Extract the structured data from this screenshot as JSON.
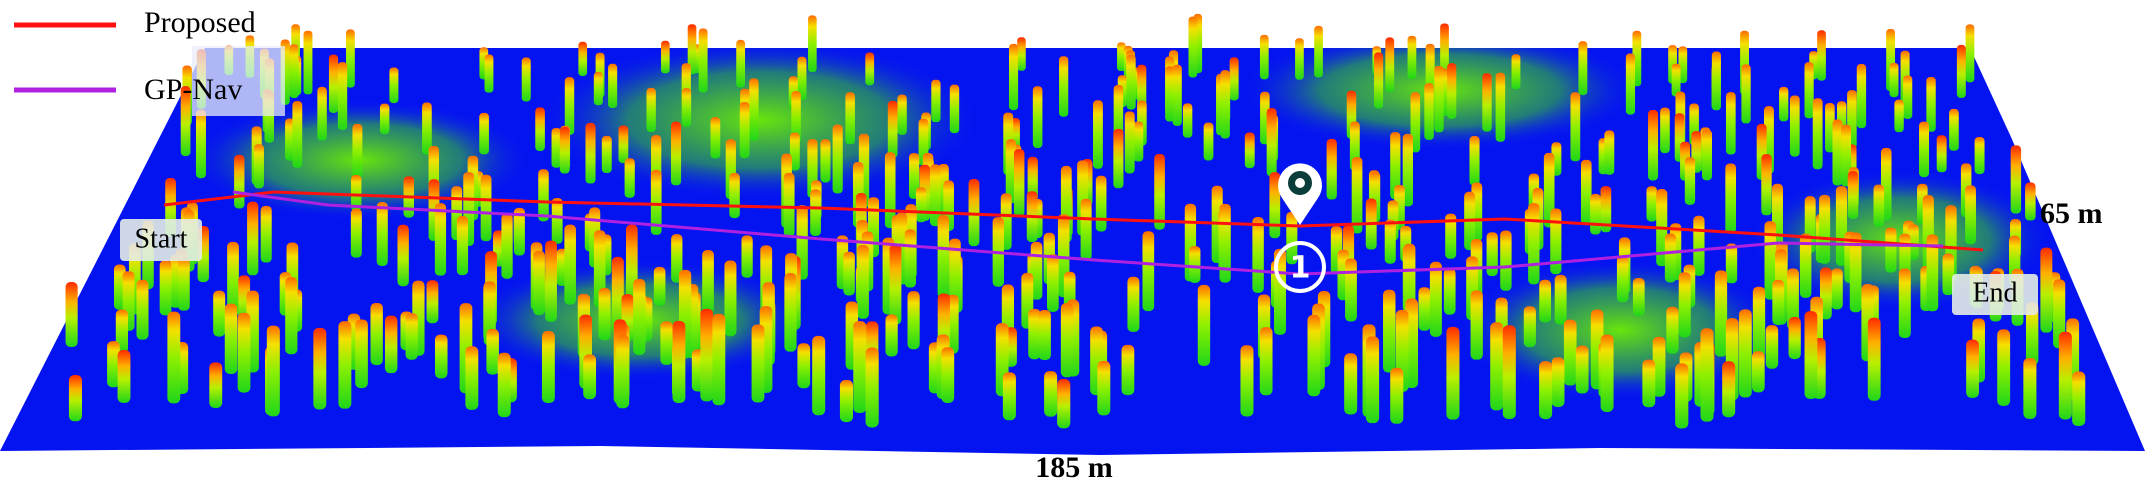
{
  "legend": {
    "items": [
      {
        "label": "Proposed"
      },
      {
        "label": "GP-Nav"
      }
    ]
  },
  "scene": {
    "start": "Start",
    "end": "End",
    "width_label": "65 m",
    "length_label": "185 m",
    "waypoint": "1"
  }
}
